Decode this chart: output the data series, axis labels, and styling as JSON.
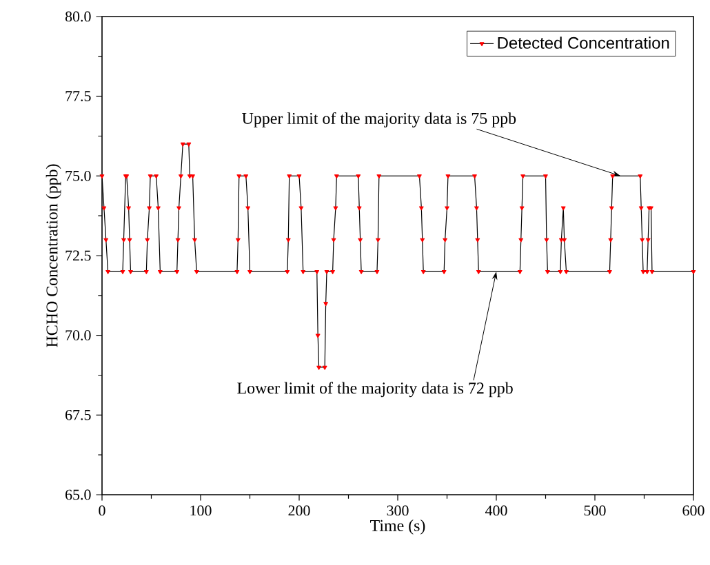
{
  "chart_data": {
    "type": "line",
    "xlabel": "Time (s)",
    "ylabel": "HCHO Concentration (ppb)",
    "xlim": [
      0,
      600
    ],
    "ylim": [
      65,
      80
    ],
    "xticks": [
      0,
      100,
      200,
      300,
      400,
      500,
      600
    ],
    "yticks": [
      {
        "value": 65,
        "label": "65.0"
      },
      {
        "value": 67.5,
        "label": "67.5"
      },
      {
        "value": 70,
        "label": "70.0"
      },
      {
        "value": 72.5,
        "label": "72.5"
      },
      {
        "value": 75,
        "label": "75.0"
      },
      {
        "value": 77.5,
        "label": "77.5"
      },
      {
        "value": 80,
        "label": "80.0"
      }
    ],
    "legend": "top right",
    "marker": "triangle",
    "line_style": "solid",
    "grid": false,
    "series": [
      {
        "name": "Detected Concentration",
        "color": "#ff0000",
        "x": [
          0,
          2,
          4,
          6,
          21,
          22,
          24,
          25,
          27,
          28,
          29,
          45,
          46,
          48,
          49,
          55,
          57,
          59,
          76,
          77,
          78,
          80,
          82,
          88,
          89,
          92,
          94,
          96,
          137,
          138,
          139,
          146,
          148,
          150,
          188,
          189,
          190,
          200,
          202,
          204,
          218,
          219,
          220,
          226,
          227,
          228,
          234,
          235,
          237,
          238,
          260,
          261,
          262,
          263,
          279,
          280,
          281,
          322,
          324,
          325,
          326,
          347,
          348,
          350,
          351,
          378,
          380,
          381,
          382,
          424,
          425,
          426,
          427,
          450,
          451,
          452,
          465,
          466,
          468,
          469,
          471,
          515,
          516,
          517,
          518,
          546,
          547,
          548,
          549,
          553,
          554,
          555,
          557,
          558,
          600
        ],
        "values": [
          75,
          74,
          73,
          72,
          72,
          73,
          75,
          75,
          74,
          73,
          72,
          72,
          73,
          74,
          75,
          75,
          74,
          72,
          72,
          73,
          74,
          75,
          76,
          76,
          75,
          75,
          73,
          72,
          72,
          73,
          75,
          75,
          74,
          72,
          72,
          73,
          75,
          75,
          74,
          72,
          72,
          70,
          69,
          69,
          71,
          72,
          72,
          73,
          74,
          75,
          75,
          74,
          73,
          72,
          72,
          73,
          75,
          75,
          74,
          73,
          72,
          72,
          73,
          74,
          75,
          75,
          74,
          73,
          72,
          72,
          73,
          74,
          75,
          75,
          73,
          72,
          72,
          73,
          74,
          73,
          72,
          72,
          73,
          74,
          75,
          75,
          74,
          73,
          72,
          72,
          73,
          74,
          74,
          72,
          72
        ]
      }
    ],
    "annotations": [
      {
        "text": "Upper limit of the majority data is 75 ppb",
        "x": 526,
        "y": 75
      },
      {
        "text": "Lower limit of the majority data is 72 ppb",
        "x": 400,
        "y": 72
      }
    ]
  }
}
